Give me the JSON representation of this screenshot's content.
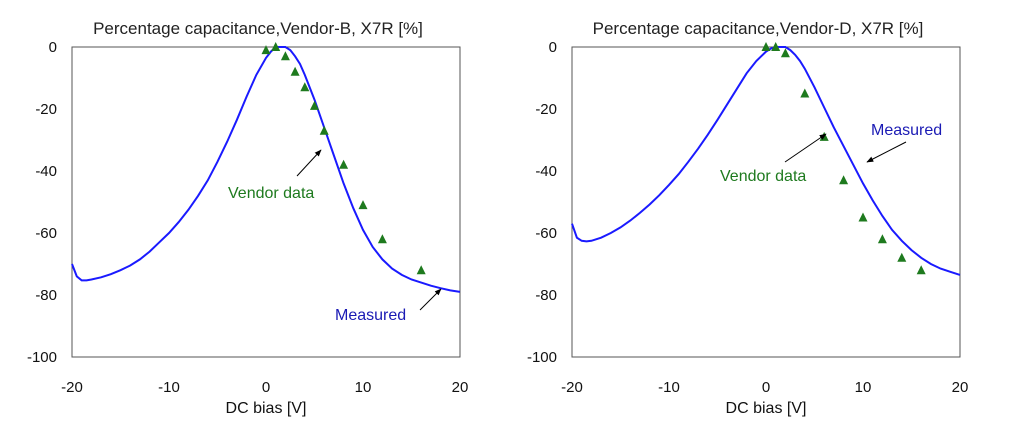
{
  "chart_data": [
    {
      "type": "line",
      "title": "Percentage capacitance,Vendor-B, X7R [%]",
      "xlabel": "DC bias [V]",
      "ylabel": "",
      "xlim": [
        -20,
        20
      ],
      "ylim": [
        -100,
        0
      ],
      "x_ticks": [
        "-20",
        "-10",
        "0",
        "10",
        "20"
      ],
      "y_ticks": [
        "0",
        "-20",
        "-40",
        "-60",
        "-80",
        "-100"
      ],
      "grid": false,
      "series": [
        {
          "name": "Measured",
          "style": "line",
          "color": "#1a1aff",
          "x": [
            -20,
            -19.5,
            -19,
            -18.5,
            -18,
            -17,
            -16,
            -15,
            -14,
            -13,
            -12,
            -11,
            -10,
            -9,
            -8,
            -7,
            -6,
            -5,
            -4,
            -3,
            -2,
            -1,
            0,
            0.5,
            1,
            1.5,
            2,
            2.5,
            3,
            3.5,
            4,
            5,
            6,
            7,
            8,
            9,
            10,
            11,
            12,
            13,
            14,
            15,
            16,
            17,
            18,
            19,
            20
          ],
          "y": [
            -70,
            -74,
            -75.3,
            -75.3,
            -75,
            -74.3,
            -73.3,
            -72,
            -70.5,
            -68.5,
            -66,
            -63,
            -60,
            -56.5,
            -52.5,
            -48,
            -43,
            -37,
            -30.5,
            -23.5,
            -16,
            -9,
            -3.5,
            -1.5,
            0,
            0,
            0,
            -1,
            -3,
            -5.5,
            -9,
            -17,
            -26,
            -35,
            -44,
            -52,
            -59,
            -64.5,
            -68.5,
            -71.5,
            -73.5,
            -75,
            -76,
            -77,
            -77.8,
            -78.5,
            -79
          ]
        },
        {
          "name": "Vendor data",
          "style": "triangle",
          "color": "#1e7a1e",
          "x": [
            0,
            1,
            2,
            3,
            4,
            5,
            6,
            8,
            10,
            12,
            16
          ],
          "y": [
            -1,
            0,
            -3,
            -8,
            -13,
            -19,
            -27,
            -38,
            -51,
            -62,
            -72
          ]
        }
      ],
      "annotations": [
        {
          "text": "Vendor data",
          "color": "#1e7a1e"
        },
        {
          "text": "Measured",
          "color": "#1a1ab4"
        }
      ]
    },
    {
      "type": "line",
      "title": "Percentage capacitance,Vendor-D, X7R [%]",
      "xlabel": "DC bias [V]",
      "ylabel": "",
      "xlim": [
        -20,
        20
      ],
      "ylim": [
        -100,
        0
      ],
      "x_ticks": [
        "-20",
        "-10",
        "0",
        "10",
        "20"
      ],
      "y_ticks": [
        "0",
        "-20",
        "-40",
        "-60",
        "-80",
        "-100"
      ],
      "grid": false,
      "series": [
        {
          "name": "Measured",
          "style": "line",
          "color": "#1a1aff",
          "x": [
            -20,
            -19.5,
            -19,
            -18.5,
            -18,
            -17,
            -16,
            -15,
            -14,
            -13,
            -12,
            -11,
            -10,
            -9,
            -8,
            -7,
            -6,
            -5,
            -4,
            -3,
            -2,
            -1,
            0,
            0.5,
            1,
            1.5,
            2,
            2.5,
            3,
            3.5,
            4,
            5,
            6,
            7,
            8,
            9,
            10,
            11,
            12,
            13,
            14,
            15,
            16,
            17,
            18,
            19,
            20
          ],
          "y": [
            -57,
            -61.5,
            -62.5,
            -62.7,
            -62.5,
            -61.5,
            -60,
            -58.2,
            -56,
            -53.5,
            -50.8,
            -47.8,
            -44.5,
            -41,
            -37,
            -32.8,
            -28.3,
            -23.5,
            -18.5,
            -13.5,
            -8.5,
            -4.5,
            -1.5,
            -0.5,
            0,
            0,
            0,
            -1,
            -2.5,
            -4.5,
            -7,
            -13,
            -19.5,
            -26,
            -32,
            -38,
            -44,
            -49.5,
            -54.5,
            -59,
            -62.5,
            -65.5,
            -68,
            -70,
            -71.5,
            -72.5,
            -73.5
          ]
        },
        {
          "name": "Vendor data",
          "style": "triangle",
          "color": "#1e7a1e",
          "x": [
            0,
            1,
            2,
            4,
            6,
            8,
            10,
            12,
            14,
            16
          ],
          "y": [
            0,
            0,
            -2,
            -15,
            -29,
            -43,
            -55,
            -62,
            -68,
            -72
          ]
        }
      ],
      "annotations": [
        {
          "text": "Vendor data",
          "color": "#1e7a1e"
        },
        {
          "text": "Measured",
          "color": "#1a1ab4"
        }
      ]
    }
  ]
}
